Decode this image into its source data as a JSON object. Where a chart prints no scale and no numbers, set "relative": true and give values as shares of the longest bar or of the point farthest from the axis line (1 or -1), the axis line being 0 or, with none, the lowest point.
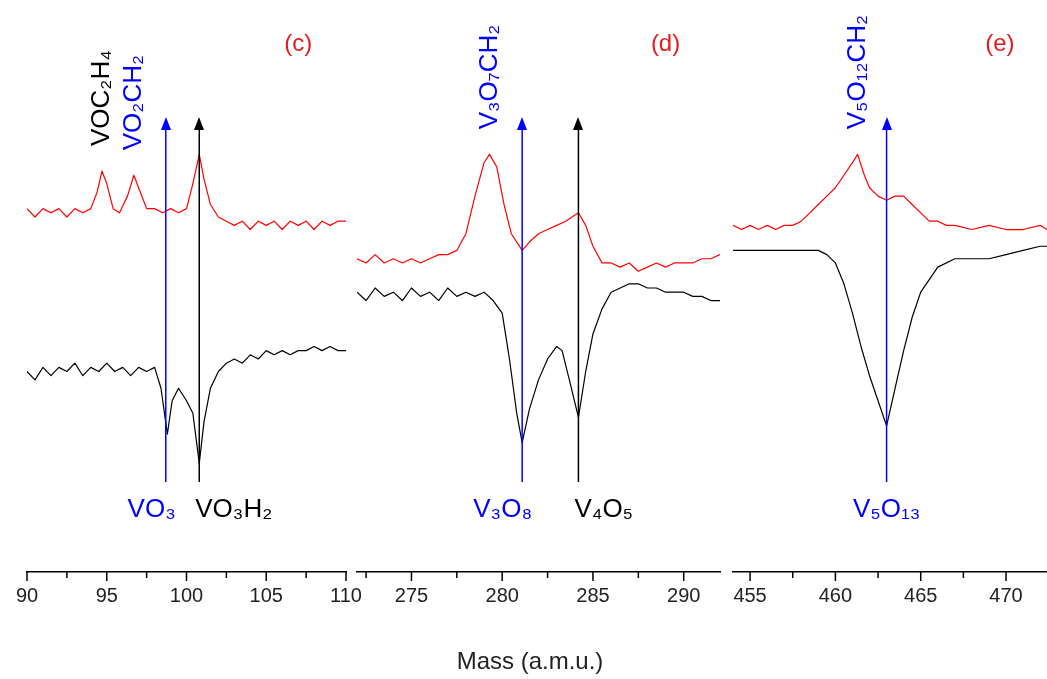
{
  "chart_data": [
    {
      "type": "line",
      "title": "(c)",
      "relative": true,
      "tick_labels": "x",
      "xlim": [
        90,
        110
      ],
      "xticks": [
        90,
        {
          "value": 92.5,
          "label": null
        },
        95,
        {
          "value": 97.5,
          "label": null
        },
        100,
        {
          "value": 102.5,
          "label": null
        },
        105,
        {
          "value": 107.5,
          "label": null
        },
        110
      ],
      "series": [
        {
          "color": "#ff0000",
          "x": [
            90,
            90.5,
            91,
            91.5,
            92,
            92.5,
            93,
            93.5,
            94,
            94.4,
            94.7,
            95,
            95.4,
            95.8,
            96.3,
            96.7,
            97.1,
            97.5,
            98,
            98.5,
            99,
            99.5,
            100,
            100.4,
            100.8,
            101.1,
            101.5,
            102,
            102.5,
            103,
            103.5,
            104,
            104.5,
            105,
            105.5,
            106,
            106.5,
            107,
            107.5,
            108,
            108.5,
            109,
            109.5,
            110
          ],
          "values": [
            0.87,
            0.85,
            0.87,
            0.86,
            0.87,
            0.85,
            0.87,
            0.86,
            0.87,
            0.91,
            0.96,
            0.93,
            0.87,
            0.86,
            0.9,
            0.95,
            0.91,
            0.87,
            0.87,
            0.86,
            0.87,
            0.86,
            0.87,
            0.93,
            1.0,
            0.94,
            0.88,
            0.85,
            0.84,
            0.83,
            0.84,
            0.82,
            0.84,
            0.83,
            0.84,
            0.82,
            0.84,
            0.83,
            0.84,
            0.82,
            0.84,
            0.83,
            0.84,
            0.84
          ]
        },
        {
          "color": "#000000",
          "x": [
            90,
            90.5,
            91,
            91.5,
            92,
            92.5,
            93,
            93.5,
            94,
            94.5,
            95,
            95.5,
            96,
            96.5,
            97,
            97.5,
            98,
            98.4,
            98.8,
            99.1,
            99.5,
            100,
            100.4,
            100.8,
            101.1,
            101.5,
            102,
            102.5,
            103,
            103.5,
            104,
            104.5,
            105,
            105.5,
            106,
            106.5,
            107,
            107.5,
            108,
            108.5,
            109,
            109.5,
            110
          ],
          "values": [
            0.48,
            0.46,
            0.49,
            0.47,
            0.49,
            0.48,
            0.5,
            0.47,
            0.49,
            0.48,
            0.5,
            0.48,
            0.49,
            0.47,
            0.49,
            0.48,
            0.49,
            0.44,
            0.33,
            0.41,
            0.44,
            0.41,
            0.38,
            0.26,
            0.36,
            0.44,
            0.48,
            0.5,
            0.51,
            0.5,
            0.52,
            0.51,
            0.53,
            0.52,
            0.53,
            0.52,
            0.53,
            0.53,
            0.54,
            0.53,
            0.54,
            0.53,
            0.53
          ]
        }
      ],
      "ref_lines": [
        {
          "axis": "x",
          "value": 98.7,
          "color": "#0000ff",
          "label": "VO₃"
        },
        {
          "axis": "x",
          "value": 100.8,
          "color": "#000000",
          "label": "VO₃H₂"
        }
      ],
      "annotations": [
        {
          "text": "VOC₂H₄",
          "x": 94.7,
          "y": 0.96
        },
        {
          "text": "VO₂CH₂",
          "x": 96.7,
          "y": 0.95
        }
      ]
    },
    {
      "type": "line",
      "title": "(d)",
      "xlabel": "Mass (a.m.u.)",
      "relative": true,
      "tick_labels": "x",
      "xlim": [
        272,
        292
      ],
      "xticks": [
        {
          "value": 272.5,
          "label": null
        },
        275,
        {
          "value": 277.5,
          "label": null
        },
        280,
        {
          "value": 282.5,
          "label": null
        },
        285,
        {
          "value": 287.5,
          "label": null
        },
        290
      ],
      "series": [
        {
          "color": "#ff0000",
          "x": [
            272,
            272.5,
            273,
            273.5,
            274,
            274.5,
            275,
            275.5,
            276,
            276.5,
            277,
            277.5,
            278,
            278.5,
            279,
            279.3,
            279.7,
            280.1,
            280.5,
            281.1,
            281.5,
            282,
            282.5,
            283,
            283.5,
            284.2,
            284.6,
            285,
            285.5,
            286,
            286.5,
            287,
            287.5,
            288,
            288.5,
            289,
            289.5,
            290,
            290.5,
            291,
            291.5,
            292
          ],
          "values": [
            0.75,
            0.74,
            0.76,
            0.74,
            0.75,
            0.74,
            0.75,
            0.74,
            0.75,
            0.76,
            0.76,
            0.77,
            0.81,
            0.9,
            0.98,
            1.0,
            0.97,
            0.88,
            0.81,
            0.77,
            0.79,
            0.81,
            0.82,
            0.83,
            0.84,
            0.86,
            0.83,
            0.78,
            0.74,
            0.74,
            0.73,
            0.74,
            0.72,
            0.73,
            0.74,
            0.73,
            0.74,
            0.74,
            0.74,
            0.75,
            0.75,
            0.76
          ]
        },
        {
          "color": "#000000",
          "x": [
            272,
            272.5,
            273,
            273.5,
            274,
            274.5,
            275,
            275.5,
            276,
            276.5,
            277,
            277.5,
            278,
            278.5,
            279,
            279.5,
            280,
            280.4,
            280.8,
            281.1,
            281.5,
            282,
            282.5,
            283,
            283.3,
            283.7,
            284.2,
            284.6,
            285,
            285.5,
            286,
            286.5,
            287,
            287.5,
            288,
            288.5,
            289,
            289.5,
            290,
            290.5,
            291,
            291.5,
            292
          ],
          "values": [
            0.67,
            0.65,
            0.68,
            0.66,
            0.67,
            0.65,
            0.68,
            0.66,
            0.67,
            0.65,
            0.68,
            0.66,
            0.67,
            0.66,
            0.67,
            0.65,
            0.62,
            0.51,
            0.38,
            0.31,
            0.39,
            0.46,
            0.51,
            0.54,
            0.53,
            0.46,
            0.37,
            0.48,
            0.57,
            0.63,
            0.67,
            0.68,
            0.69,
            0.69,
            0.68,
            0.68,
            0.67,
            0.67,
            0.67,
            0.66,
            0.66,
            0.65,
            0.65
          ]
        }
      ],
      "ref_lines": [
        {
          "axis": "x",
          "value": 281.1,
          "color": "#0000ff",
          "label": "V₃O₈"
        },
        {
          "axis": "x",
          "value": 284.2,
          "color": "#000000",
          "label": "V₄O₅"
        }
      ],
      "annotations": [
        {
          "text": "V₃O₇CH₂",
          "x": 279.3,
          "y": 1.0
        }
      ]
    },
    {
      "type": "line",
      "title": "(e)",
      "relative": true,
      "tick_labels": "x",
      "xlim": [
        454,
        472.4
      ],
      "xticks": [
        455,
        {
          "value": 457.5,
          "label": null
        },
        460,
        {
          "value": 462.5,
          "label": null
        },
        465,
        {
          "value": 467.5,
          "label": null
        },
        470
      ],
      "series": [
        {
          "color": "#ff0000",
          "x": [
            454,
            454.5,
            455,
            455.5,
            456,
            456.5,
            457,
            457.5,
            458,
            458.5,
            459,
            459.5,
            460,
            460.5,
            461,
            461.3,
            461.7,
            462,
            462.5,
            463,
            463.5,
            464,
            464.5,
            465,
            465.5,
            466,
            466.5,
            467,
            468,
            469,
            470,
            471,
            472,
            472.4
          ],
          "values": [
            0.83,
            0.82,
            0.83,
            0.82,
            0.83,
            0.82,
            0.83,
            0.83,
            0.84,
            0.86,
            0.88,
            0.9,
            0.92,
            0.95,
            0.98,
            1.0,
            0.95,
            0.92,
            0.9,
            0.89,
            0.9,
            0.9,
            0.88,
            0.86,
            0.84,
            0.84,
            0.83,
            0.83,
            0.82,
            0.83,
            0.82,
            0.82,
            0.83,
            0.82
          ]
        },
        {
          "color": "#000000",
          "x": [
            454,
            455,
            456,
            457,
            458,
            459,
            459.5,
            460,
            460.5,
            461,
            461.5,
            462,
            462.5,
            463,
            463.5,
            464,
            464.5,
            465,
            465.5,
            466,
            467,
            468,
            469,
            470,
            471,
            472,
            472.4
          ],
          "values": [
            0.77,
            0.77,
            0.77,
            0.77,
            0.77,
            0.77,
            0.76,
            0.74,
            0.69,
            0.62,
            0.54,
            0.47,
            0.41,
            0.35,
            0.44,
            0.53,
            0.61,
            0.67,
            0.7,
            0.73,
            0.75,
            0.75,
            0.75,
            0.76,
            0.77,
            0.78,
            0.78
          ]
        }
      ],
      "ref_lines": [
        {
          "axis": "x",
          "value": 463,
          "color": "#0000ff",
          "label": "V₅O₁₃"
        }
      ],
      "annotations": [
        {
          "text": "V₅O₁₂CH₂",
          "x": 461.3,
          "y": 1.0
        }
      ]
    }
  ]
}
